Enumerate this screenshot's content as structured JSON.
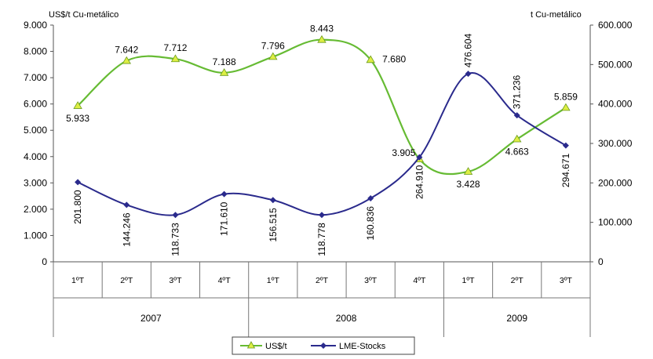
{
  "chart_data": {
    "type": "line",
    "title": "",
    "y_left_label": "US$/t Cu-metálico",
    "y_right_label": "t Cu-metálico",
    "y_left_ticks": [
      "9.000",
      "8.000",
      "7.000",
      "6.000",
      "5.000",
      "4.000",
      "3.000",
      "2.000",
      "1.000",
      "0"
    ],
    "y_right_ticks": [
      "600.000",
      "500.000",
      "400.000",
      "300.000",
      "200.000",
      "100.000",
      "0"
    ],
    "ylim_left": [
      0,
      9000
    ],
    "ylim_right": [
      0,
      600000
    ],
    "categories": [
      "1ºT",
      "2ºT",
      "3ºT",
      "4ºT",
      "1ºT",
      "2ºT",
      "3ºT",
      "4ºT",
      "1ºT",
      "2ºT",
      "3ºT"
    ],
    "years": [
      {
        "label": "2007",
        "span": 4
      },
      {
        "label": "2008",
        "span": 4
      },
      {
        "label": "2009",
        "span": 3
      }
    ],
    "legend_position": "bottom",
    "series": [
      {
        "name": "US$/t",
        "axis": "left",
        "color": "#66bb33",
        "marker_color": "#ddee44",
        "values": [
          5933,
          7642,
          7712,
          7188,
          7796,
          8443,
          7680,
          3905,
          3428,
          4663,
          5859
        ],
        "labels": [
          "5.933",
          "7.642",
          "7.712",
          "7.188",
          "7.796",
          "8.443",
          "7.680",
          "3.905",
          "3.428",
          "4.663",
          "5.859"
        ]
      },
      {
        "name": "LME-Stocks",
        "axis": "right",
        "color": "#2a2a8c",
        "values": [
          201800,
          144246,
          118733,
          171610,
          156515,
          118778,
          160836,
          264910,
          476604,
          371236,
          294671
        ],
        "labels": [
          "201.800",
          "144.246",
          "118.733",
          "171.610",
          "156.515",
          "118.778",
          "160.836",
          "264.910",
          "476.604",
          "371.236",
          "294.671"
        ]
      }
    ]
  }
}
